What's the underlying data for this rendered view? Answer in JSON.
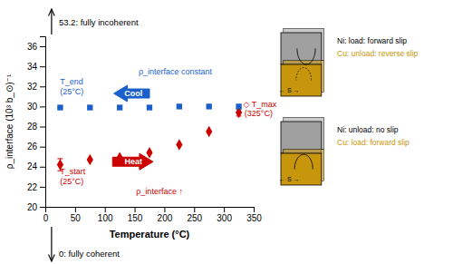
{
  "chart_data": {
    "type": "scatter",
    "xlabel": "Temperature (°C)",
    "ylabel": "ρ_interface  (10³ b_⊙)⁻¹",
    "x": [
      25,
      75,
      125,
      175,
      225,
      275,
      325
    ],
    "series": [
      {
        "color": "#cc0000",
        "marker": "diamond",
        "values": [
          24.2,
          24.7,
          24.9,
          25.4,
          26.2,
          27.5,
          29.4
        ],
        "error_low": [
          0.6,
          0,
          0,
          0,
          0,
          0,
          0.35
        ],
        "error_high": [
          0.6,
          0,
          0,
          0,
          0,
          0,
          0.35
        ]
      },
      {
        "color": "#1a5fcc",
        "marker": "square",
        "values": [
          29.9,
          29.9,
          29.9,
          29.9,
          30.0,
          30.0,
          30.0
        ]
      }
    ],
    "xlim": [
      0,
      350
    ],
    "ylim": [
      20,
      37
    ],
    "xticks": [
      0,
      50,
      100,
      150,
      200,
      250,
      300,
      350
    ],
    "yticks": [
      20,
      22,
      24,
      26,
      28,
      30,
      32,
      34,
      36
    ],
    "grid": false,
    "legend": false,
    "annotations": [
      {
        "text": "T_end",
        "x": 20,
        "y": 32.5,
        "color": "#1a5fcc"
      },
      {
        "text": "(25°C)",
        "x": 20,
        "y": 31.5,
        "color": "#1a5fcc"
      },
      {
        "text": "T_start",
        "x": 20,
        "y": 23.5,
        "color": "#cc0000"
      },
      {
        "text": "(25°C)",
        "x": 20,
        "y": 22.5,
        "color": "#cc0000"
      },
      {
        "text": "◇ T_max",
        "x": 328,
        "y": 30.2,
        "color": "#cc0000"
      },
      {
        "text": "(325°C)",
        "x": 330,
        "y": 29.3,
        "color": "#cc0000"
      },
      {
        "text": "ρ_interface constant",
        "x": 152,
        "y": 33.5,
        "color": "#1a5fcc"
      },
      {
        "text": "ρ_interface ↑",
        "x": 148,
        "y": 21.5,
        "color": "#cc0000"
      }
    ],
    "arrows": [
      {
        "text": "Cool",
        "x": [
          175,
          115
        ],
        "y": 31.3,
        "text_x": 148,
        "color": "#1a5fcc"
      },
      {
        "text": "Heat",
        "x": [
          113,
          181
        ],
        "y": 24.5,
        "text_x": 148,
        "color": "#cc0000"
      }
    ],
    "edge_notes": [
      {
        "text": "53.2: fully incoherent",
        "arrow": "up"
      },
      {
        "text": "0: fully coherent",
        "arrow": "down"
      }
    ],
    "inset_colors": [
      "#a0a0a0",
      "#c8960c"
    ],
    "insets": [
      {
        "loop": "Ni",
        "label": "← S →",
        "lines": [
          {
            "text": "Ni: load: forward slip",
            "color": "black"
          },
          {
            "text": "Cu: unload: reverse slip",
            "color": "#c8960c"
          }
        ]
      },
      {
        "loop": "Cu",
        "label": "← S →",
        "lines": [
          {
            "text": "Ni: unload: no slip",
            "color": "black"
          },
          {
            "text": "Cu: load: forward slip",
            "color": "#c8960c"
          }
        ]
      }
    ]
  }
}
